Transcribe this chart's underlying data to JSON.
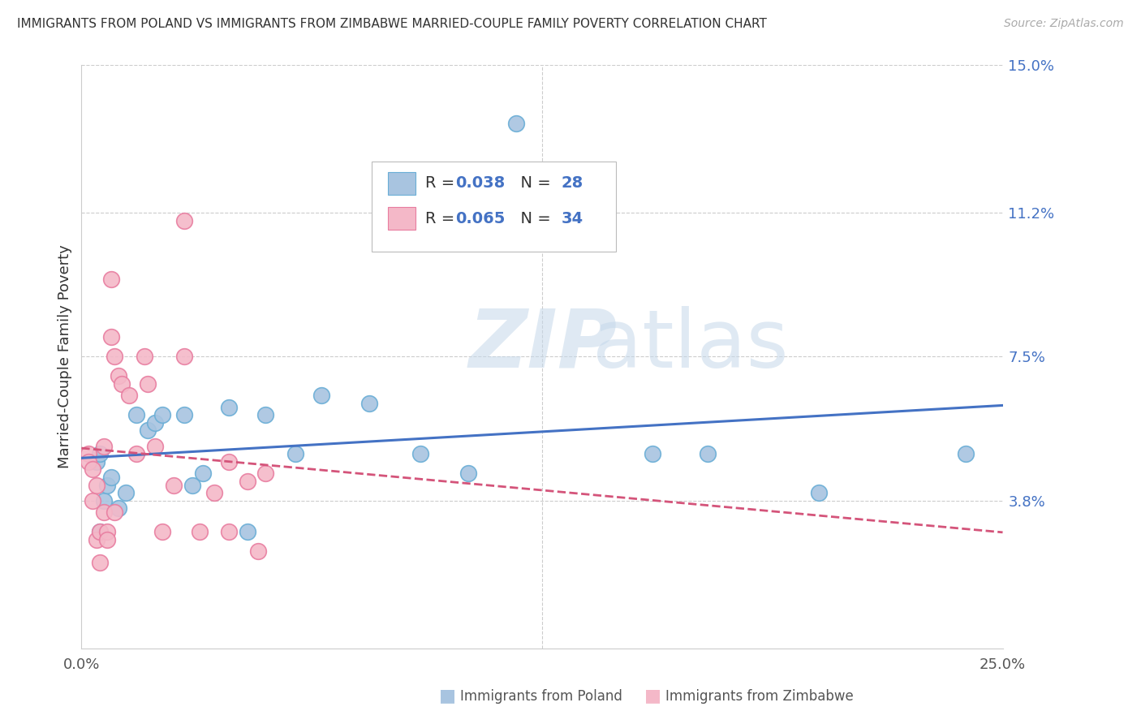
{
  "title": "IMMIGRANTS FROM POLAND VS IMMIGRANTS FROM ZIMBABWE MARRIED-COUPLE FAMILY POVERTY CORRELATION CHART",
  "source": "Source: ZipAtlas.com",
  "ylabel": "Married-Couple Family Poverty",
  "xlim": [
    0.0,
    0.25
  ],
  "ylim": [
    0.0,
    0.15
  ],
  "yticks_right": [
    0.0,
    0.038,
    0.075,
    0.112,
    0.15
  ],
  "yticks_right_labels": [
    "",
    "3.8%",
    "7.5%",
    "11.2%",
    "15.0%"
  ],
  "poland_color": "#a8c4e0",
  "poland_edge": "#6aaed6",
  "zimbabwe_color": "#f4b8c8",
  "zimbabwe_edge": "#e87da0",
  "trend_poland_color": "#4472c4",
  "trend_zimbabwe_color": "#d4547a",
  "grid_color": "#cccccc",
  "background_color": "#ffffff",
  "watermark_zip": "ZIP",
  "watermark_atlas": "atlas",
  "poland_x": [
    0.004,
    0.005,
    0.005,
    0.006,
    0.007,
    0.008,
    0.01,
    0.012,
    0.015,
    0.018,
    0.02,
    0.022,
    0.028,
    0.03,
    0.033,
    0.04,
    0.05,
    0.058,
    0.065,
    0.078,
    0.092,
    0.105,
    0.118,
    0.155,
    0.17,
    0.2,
    0.24,
    0.045
  ],
  "poland_y": [
    0.048,
    0.05,
    0.03,
    0.038,
    0.042,
    0.044,
    0.036,
    0.04,
    0.06,
    0.056,
    0.058,
    0.06,
    0.06,
    0.042,
    0.045,
    0.062,
    0.06,
    0.05,
    0.065,
    0.063,
    0.05,
    0.045,
    0.135,
    0.05,
    0.05,
    0.04,
    0.05,
    0.03
  ],
  "zimbabwe_x": [
    0.002,
    0.002,
    0.003,
    0.003,
    0.004,
    0.004,
    0.005,
    0.005,
    0.006,
    0.006,
    0.007,
    0.007,
    0.008,
    0.008,
    0.009,
    0.009,
    0.01,
    0.011,
    0.013,
    0.015,
    0.017,
    0.018,
    0.02,
    0.022,
    0.025,
    0.028,
    0.032,
    0.036,
    0.04,
    0.045,
    0.048,
    0.05,
    0.04,
    0.028
  ],
  "zimbabwe_y": [
    0.05,
    0.048,
    0.046,
    0.038,
    0.042,
    0.028,
    0.03,
    0.022,
    0.052,
    0.035,
    0.03,
    0.028,
    0.095,
    0.08,
    0.075,
    0.035,
    0.07,
    0.068,
    0.065,
    0.05,
    0.075,
    0.068,
    0.052,
    0.03,
    0.042,
    0.075,
    0.03,
    0.04,
    0.03,
    0.043,
    0.025,
    0.045,
    0.048,
    0.11
  ]
}
